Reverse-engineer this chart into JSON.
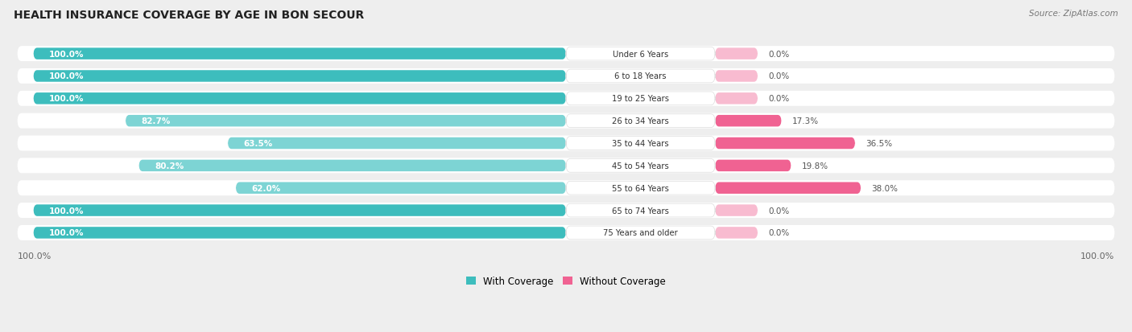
{
  "title": "HEALTH INSURANCE COVERAGE BY AGE IN BON SECOUR",
  "source": "Source: ZipAtlas.com",
  "categories": [
    "Under 6 Years",
    "6 to 18 Years",
    "19 to 25 Years",
    "26 to 34 Years",
    "35 to 44 Years",
    "45 to 54 Years",
    "55 to 64 Years",
    "65 to 74 Years",
    "75 Years and older"
  ],
  "with_coverage": [
    100.0,
    100.0,
    100.0,
    82.7,
    63.5,
    80.2,
    62.0,
    100.0,
    100.0
  ],
  "without_coverage": [
    0.0,
    0.0,
    0.0,
    17.3,
    36.5,
    19.8,
    38.0,
    0.0,
    0.0
  ],
  "color_with_full": "#3DBDBD",
  "color_with_part": "#7DD4D4",
  "color_without_large": "#F06292",
  "color_without_small": "#F8BBD0",
  "bg_color": "#eeeeee",
  "row_bg": "#f9f9f9",
  "row_bg_alt": "#f0f0f0"
}
